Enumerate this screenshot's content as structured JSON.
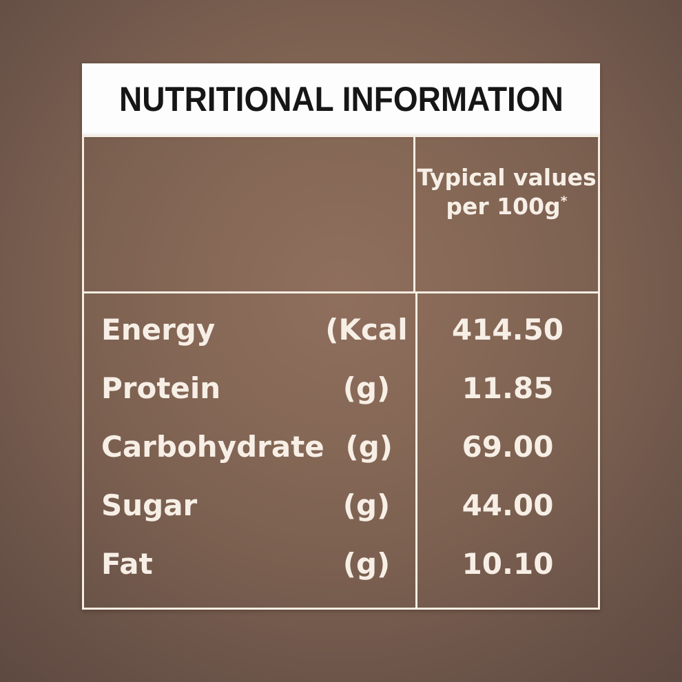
{
  "title": "NUTRITIONAL INFORMATION",
  "column_header": {
    "line1": "Typical values",
    "line2": "per 100g",
    "footnote_marker": "*"
  },
  "rows": [
    {
      "name": "Energy",
      "unit": "(Kcal",
      "value": "414.50"
    },
    {
      "name": "Protein",
      "unit": "(g)",
      "value": "11.85"
    },
    {
      "name": "Carbohydrate",
      "unit": "(g)",
      "value": "69.00"
    },
    {
      "name": "Sugar",
      "unit": "(g)",
      "value": "44.00"
    },
    {
      "name": "Fat",
      "unit": "(g)",
      "value": "10.10"
    }
  ],
  "colors": {
    "background_center": "#8f6e5d",
    "background_edge": "#5e4941",
    "panel_white": "#fdfdfd",
    "title_text": "#161616",
    "body_text": "#f7efe6",
    "border": "#f6eee3"
  }
}
